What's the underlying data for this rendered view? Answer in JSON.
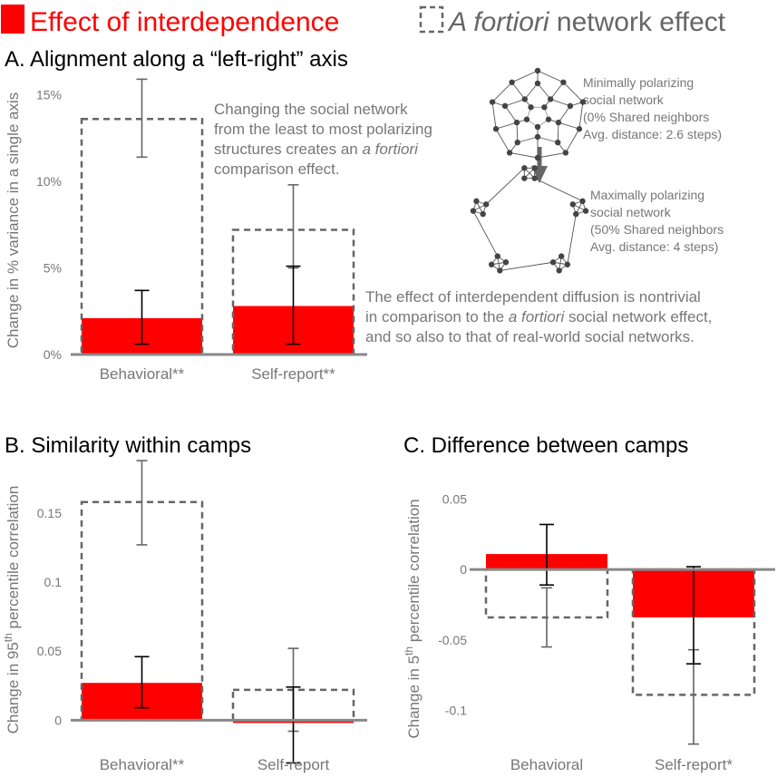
{
  "legend": {
    "effect_label": "Effect of interdependence",
    "network_label_italic": "A fortiori",
    "network_label_rest": " network effect",
    "effect_color": "#ff0000",
    "network_color": "#666666"
  },
  "panel_a": {
    "title": "A. Alignment along a “left-right” axis",
    "note_1": [
      "Changing the social network",
      "from the least to most polarizing",
      "structures creates an ",
      "a fortiori",
      "comparison effect."
    ],
    "note_2": [
      "The effect of interdependent diffusion is nontrivial",
      "in comparison to the ",
      "a fortiori",
      " social network effect,",
      "and so also to that of real-world social networks."
    ],
    "min_network": [
      "Minimally polarizing",
      "social network",
      "(0% Shared neighbors",
      "Avg. distance: 2.6 steps)"
    ],
    "max_network": [
      "Maximally polarizing",
      "social network",
      "(50% Shared neighbors",
      "Avg. distance: 4 steps)"
    ]
  },
  "panel_b": {
    "title": "B. Similarity within camps"
  },
  "panel_c": {
    "title": "C. Difference between camps"
  },
  "chart_data": [
    {
      "id": "A",
      "type": "bar",
      "categories": [
        "Behavioral**",
        "Self-report**"
      ],
      "ylabel": "Change in % variance in a single axis",
      "ylim": [
        0,
        0.155
      ],
      "yticks": [
        0,
        0.05,
        0.1,
        0.15
      ],
      "ytick_labels": [
        "0%",
        "5%",
        "10%",
        "15%"
      ],
      "series": [
        {
          "name": "A fortiori network effect",
          "style": "dashed-outline",
          "values": [
            0.136,
            0.072
          ],
          "ci_low": [
            0.114,
            0.05
          ],
          "ci_high": [
            0.159,
            0.098
          ]
        },
        {
          "name": "Effect of interdependence",
          "style": "filled",
          "values": [
            0.021,
            0.028
          ],
          "ci_low": [
            0.006,
            0.006
          ],
          "ci_high": [
            0.037,
            0.051
          ]
        }
      ]
    },
    {
      "id": "B",
      "type": "bar",
      "categories": [
        "Behavioral**",
        "Self-report"
      ],
      "ylabel": "Change in 95th percentile correlation",
      "ylim": [
        -0.03,
        0.19
      ],
      "yticks": [
        0,
        0.05,
        0.1,
        0.15
      ],
      "ytick_labels": [
        "0",
        "0.05",
        "0.1",
        "0.15"
      ],
      "series": [
        {
          "name": "A fortiori network effect",
          "style": "dashed-outline",
          "values": [
            0.158,
            0.022
          ],
          "ci_low": [
            0.127,
            -0.008
          ],
          "ci_high": [
            0.188,
            0.052
          ]
        },
        {
          "name": "Effect of interdependence",
          "style": "filled",
          "values": [
            0.027,
            -0.002
          ],
          "ci_low": [
            0.009,
            -0.031
          ],
          "ci_high": [
            0.046,
            0.024
          ]
        }
      ]
    },
    {
      "id": "C",
      "type": "bar",
      "categories": [
        "Behavioral",
        "Self-report*"
      ],
      "ylabel": "Change in 5th percentile correlation",
      "ylim": [
        -0.13,
        0.06
      ],
      "yticks": [
        0.05,
        0,
        -0.05,
        -0.1
      ],
      "ytick_labels": [
        "0.05",
        "0",
        "-0.05",
        "-0.1"
      ],
      "series": [
        {
          "name": "A fortiori network effect",
          "style": "dashed-outline",
          "values": [
            -0.034,
            -0.089
          ],
          "ci_low": [
            -0.055,
            -0.124
          ],
          "ci_high": [
            -0.013,
            -0.057
          ]
        },
        {
          "name": "Effect of interdependence",
          "style": "filled",
          "values": [
            0.011,
            -0.034
          ],
          "ci_low": [
            -0.011,
            -0.067
          ],
          "ci_high": [
            0.032,
            0.002
          ]
        }
      ]
    }
  ]
}
